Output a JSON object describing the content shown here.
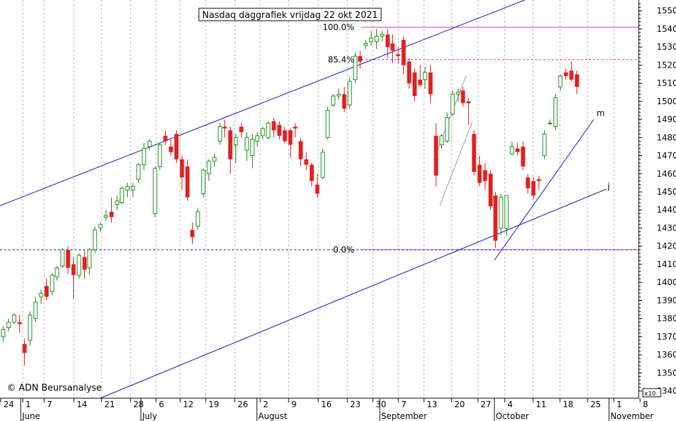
{
  "chart_data": {
    "type": "candlestick",
    "title": "Nasdaq daggrafiek vrijdag 22 okt 2021",
    "copyright": "© ADN Beursanalyse",
    "y_axis": {
      "min": 1336,
      "max": 1556,
      "ticks": [
        1340,
        1350,
        1360,
        1370,
        1380,
        1390,
        1400,
        1410,
        1420,
        1430,
        1440,
        1450,
        1460,
        1470,
        1480,
        1490,
        1500,
        1510,
        1520,
        1530,
        1540,
        1550
      ],
      "tick_labels": [
        "1340",
        "1350",
        "1360",
        "1370",
        "1380",
        "1390",
        "1400",
        "1410",
        "1420",
        "1430",
        "1440",
        "1450",
        "1460",
        "1470",
        "1480",
        "1490",
        "1500",
        "1510",
        "1520",
        "1530",
        "1540",
        "1550"
      ],
      "scale_note": "x10",
      "position": "right"
    },
    "x_axis": {
      "day_labels": [
        "24",
        "1",
        "7",
        "14",
        "21",
        "28",
        "6",
        "12",
        "19",
        "26",
        "2",
        "9",
        "16",
        "23",
        "30",
        "7",
        "13",
        "20",
        "27",
        "4",
        "11",
        "18",
        "25",
        "1",
        "8"
      ],
      "month_labels": [
        "June",
        "July",
        "August",
        "September",
        "October",
        "November"
      ]
    },
    "fibonacci": [
      {
        "label": "100.0%",
        "value": 1541
      },
      {
        "label": "85.4%",
        "value": 1523
      },
      {
        "label": "0.0%",
        "value": 1418
      }
    ],
    "support_level": {
      "value": 1418
    },
    "trendline_labels": [
      "m",
      "j"
    ],
    "grid": true,
    "colors": {
      "up": "#1a8a1a",
      "down": "#e02020",
      "channel": "#1515b0",
      "fib": "#d63cd6",
      "grid": "#b4b4b4"
    },
    "candles": [
      {
        "o": 1370,
        "h": 1376,
        "l": 1367,
        "c": 1374
      },
      {
        "o": 1375,
        "h": 1380,
        "l": 1373,
        "c": 1378
      },
      {
        "o": 1378,
        "h": 1383,
        "l": 1377,
        "c": 1382
      },
      {
        "o": 1378,
        "h": 1382,
        "l": 1372,
        "c": 1377
      },
      {
        "o": 1366,
        "h": 1369,
        "l": 1354,
        "c": 1361
      },
      {
        "o": 1368,
        "h": 1384,
        "l": 1365,
        "c": 1382
      },
      {
        "o": 1380,
        "h": 1392,
        "l": 1378,
        "c": 1389
      },
      {
        "o": 1392,
        "h": 1396,
        "l": 1388,
        "c": 1394
      },
      {
        "o": 1398,
        "h": 1402,
        "l": 1390,
        "c": 1392
      },
      {
        "o": 1395,
        "h": 1405,
        "l": 1393,
        "c": 1404
      },
      {
        "o": 1403,
        "h": 1409,
        "l": 1401,
        "c": 1408
      },
      {
        "o": 1409,
        "h": 1419,
        "l": 1408,
        "c": 1418
      },
      {
        "o": 1418,
        "h": 1420,
        "l": 1405,
        "c": 1408
      },
      {
        "o": 1410,
        "h": 1414,
        "l": 1391,
        "c": 1404
      },
      {
        "o": 1404,
        "h": 1416,
        "l": 1402,
        "c": 1415
      },
      {
        "o": 1414,
        "h": 1418,
        "l": 1402,
        "c": 1407
      },
      {
        "o": 1408,
        "h": 1419,
        "l": 1404,
        "c": 1418
      },
      {
        "o": 1418,
        "h": 1431,
        "l": 1416,
        "c": 1429
      },
      {
        "o": 1430,
        "h": 1433,
        "l": 1428,
        "c": 1432
      },
      {
        "o": 1436,
        "h": 1440,
        "l": 1434,
        "c": 1437
      },
      {
        "o": 1439,
        "h": 1447,
        "l": 1433,
        "c": 1436
      },
      {
        "o": 1443,
        "h": 1448,
        "l": 1440,
        "c": 1445
      },
      {
        "o": 1444,
        "h": 1453,
        "l": 1443,
        "c": 1452
      },
      {
        "o": 1451,
        "h": 1455,
        "l": 1447,
        "c": 1453
      },
      {
        "o": 1451,
        "h": 1455,
        "l": 1447,
        "c": 1453
      },
      {
        "o": 1457,
        "h": 1466,
        "l": 1455,
        "c": 1465
      },
      {
        "o": 1465,
        "h": 1477,
        "l": 1462,
        "c": 1474
      },
      {
        "o": 1475,
        "h": 1479,
        "l": 1473,
        "c": 1478
      },
      {
        "o": 1438,
        "h": 1464,
        "l": 1436,
        "c": 1463
      },
      {
        "o": 1464,
        "h": 1477,
        "l": 1462,
        "c": 1476
      },
      {
        "o": 1481,
        "h": 1484,
        "l": 1476,
        "c": 1478
      },
      {
        "o": 1475,
        "h": 1479,
        "l": 1470,
        "c": 1472
      },
      {
        "o": 1482,
        "h": 1484,
        "l": 1466,
        "c": 1468
      },
      {
        "o": 1468,
        "h": 1470,
        "l": 1451,
        "c": 1458
      },
      {
        "o": 1464,
        "h": 1468,
        "l": 1445,
        "c": 1447
      },
      {
        "o": 1429,
        "h": 1433,
        "l": 1421,
        "c": 1425
      },
      {
        "o": 1431,
        "h": 1441,
        "l": 1429,
        "c": 1439
      },
      {
        "o": 1449,
        "h": 1463,
        "l": 1447,
        "c": 1462
      },
      {
        "o": 1460,
        "h": 1468,
        "l": 1456,
        "c": 1467
      },
      {
        "o": 1467,
        "h": 1471,
        "l": 1464,
        "c": 1469
      },
      {
        "o": 1478,
        "h": 1488,
        "l": 1476,
        "c": 1486
      },
      {
        "o": 1486,
        "h": 1490,
        "l": 1480,
        "c": 1485
      },
      {
        "o": 1484,
        "h": 1486,
        "l": 1460,
        "c": 1468
      },
      {
        "o": 1476,
        "h": 1482,
        "l": 1466,
        "c": 1480
      },
      {
        "o": 1486,
        "h": 1488,
        "l": 1480,
        "c": 1483
      },
      {
        "o": 1473,
        "h": 1483,
        "l": 1467,
        "c": 1480
      },
      {
        "o": 1470,
        "h": 1482,
        "l": 1463,
        "c": 1479
      },
      {
        "o": 1478,
        "h": 1483,
        "l": 1475,
        "c": 1481
      },
      {
        "o": 1481,
        "h": 1486,
        "l": 1479,
        "c": 1485
      },
      {
        "o": 1480,
        "h": 1489,
        "l": 1479,
        "c": 1488
      },
      {
        "o": 1489,
        "h": 1491,
        "l": 1480,
        "c": 1484
      },
      {
        "o": 1487,
        "h": 1489,
        "l": 1479,
        "c": 1481
      },
      {
        "o": 1484,
        "h": 1486,
        "l": 1477,
        "c": 1478
      },
      {
        "o": 1484,
        "h": 1485,
        "l": 1469,
        "c": 1476
      },
      {
        "o": 1486,
        "h": 1488,
        "l": 1480,
        "c": 1485
      },
      {
        "o": 1478,
        "h": 1480,
        "l": 1464,
        "c": 1468
      },
      {
        "o": 1468,
        "h": 1472,
        "l": 1462,
        "c": 1465
      },
      {
        "o": 1465,
        "h": 1466,
        "l": 1453,
        "c": 1456
      },
      {
        "o": 1454,
        "h": 1460,
        "l": 1447,
        "c": 1449
      },
      {
        "o": 1458,
        "h": 1474,
        "l": 1457,
        "c": 1472
      },
      {
        "o": 1480,
        "h": 1497,
        "l": 1479,
        "c": 1495
      },
      {
        "o": 1498,
        "h": 1504,
        "l": 1497,
        "c": 1503
      },
      {
        "o": 1503,
        "h": 1507,
        "l": 1501,
        "c": 1504
      },
      {
        "o": 1504,
        "h": 1508,
        "l": 1494,
        "c": 1496
      },
      {
        "o": 1498,
        "h": 1513,
        "l": 1496,
        "c": 1511
      },
      {
        "o": 1512,
        "h": 1527,
        "l": 1510,
        "c": 1525
      },
      {
        "o": 1525,
        "h": 1528,
        "l": 1518,
        "c": 1522
      },
      {
        "o": 1531,
        "h": 1534,
        "l": 1529,
        "c": 1532
      },
      {
        "o": 1533,
        "h": 1539,
        "l": 1531,
        "c": 1535
      },
      {
        "o": 1533,
        "h": 1540,
        "l": 1529,
        "c": 1536
      },
      {
        "o": 1536,
        "h": 1539,
        "l": 1533,
        "c": 1537
      },
      {
        "o": 1537,
        "h": 1540,
        "l": 1524,
        "c": 1530
      },
      {
        "o": 1532,
        "h": 1537,
        "l": 1521,
        "c": 1528
      },
      {
        "o": 1526,
        "h": 1530,
        "l": 1521,
        "c": 1525
      },
      {
        "o": 1534,
        "h": 1536,
        "l": 1515,
        "c": 1520
      },
      {
        "o": 1522,
        "h": 1524,
        "l": 1507,
        "c": 1510
      },
      {
        "o": 1516,
        "h": 1518,
        "l": 1500,
        "c": 1503
      },
      {
        "o": 1512,
        "h": 1520,
        "l": 1508,
        "c": 1509
      },
      {
        "o": 1512,
        "h": 1519,
        "l": 1507,
        "c": 1516
      },
      {
        "o": 1516,
        "h": 1520,
        "l": 1499,
        "c": 1504
      },
      {
        "o": 1481,
        "h": 1488,
        "l": 1453,
        "c": 1459
      },
      {
        "o": 1476,
        "h": 1482,
        "l": 1474,
        "c": 1481
      },
      {
        "o": 1478,
        "h": 1494,
        "l": 1477,
        "c": 1491
      },
      {
        "o": 1493,
        "h": 1506,
        "l": 1492,
        "c": 1504
      },
      {
        "o": 1504,
        "h": 1507,
        "l": 1500,
        "c": 1505
      },
      {
        "o": 1506,
        "h": 1508,
        "l": 1497,
        "c": 1499
      },
      {
        "o": 1500,
        "h": 1502,
        "l": 1487,
        "c": 1499
      },
      {
        "o": 1482,
        "h": 1484,
        "l": 1459,
        "c": 1461
      },
      {
        "o": 1465,
        "h": 1470,
        "l": 1453,
        "c": 1455
      },
      {
        "o": 1462,
        "h": 1466,
        "l": 1451,
        "c": 1456
      },
      {
        "o": 1460,
        "h": 1462,
        "l": 1440,
        "c": 1442
      },
      {
        "o": 1448,
        "h": 1450,
        "l": 1419,
        "c": 1423
      },
      {
        "o": 1430,
        "h": 1449,
        "l": 1426,
        "c": 1447
      },
      {
        "o": 1430,
        "h": 1448,
        "l": 1426,
        "c": 1448
      },
      {
        "o": 1471,
        "h": 1478,
        "l": 1470,
        "c": 1475
      },
      {
        "o": 1474,
        "h": 1477,
        "l": 1470,
        "c": 1472
      },
      {
        "o": 1475,
        "h": 1478,
        "l": 1462,
        "c": 1464
      },
      {
        "o": 1458,
        "h": 1460,
        "l": 1449,
        "c": 1452
      },
      {
        "o": 1456,
        "h": 1458,
        "l": 1446,
        "c": 1448
      },
      {
        "o": 1457,
        "h": 1459,
        "l": 1451,
        "c": 1456
      },
      {
        "o": 1470,
        "h": 1484,
        "l": 1468,
        "c": 1482
      },
      {
        "o": 1488,
        "h": 1490,
        "l": 1487,
        "c": 1488
      },
      {
        "o": 1486,
        "h": 1504,
        "l": 1484,
        "c": 1502
      },
      {
        "o": 1508,
        "h": 1515,
        "l": 1506,
        "c": 1514
      },
      {
        "o": 1516,
        "h": 1518,
        "l": 1512,
        "c": 1514
      },
      {
        "o": 1517,
        "h": 1522,
        "l": 1511,
        "c": 1512
      },
      {
        "o": 1515,
        "h": 1517,
        "l": 1504,
        "c": 1508
      }
    ]
  }
}
